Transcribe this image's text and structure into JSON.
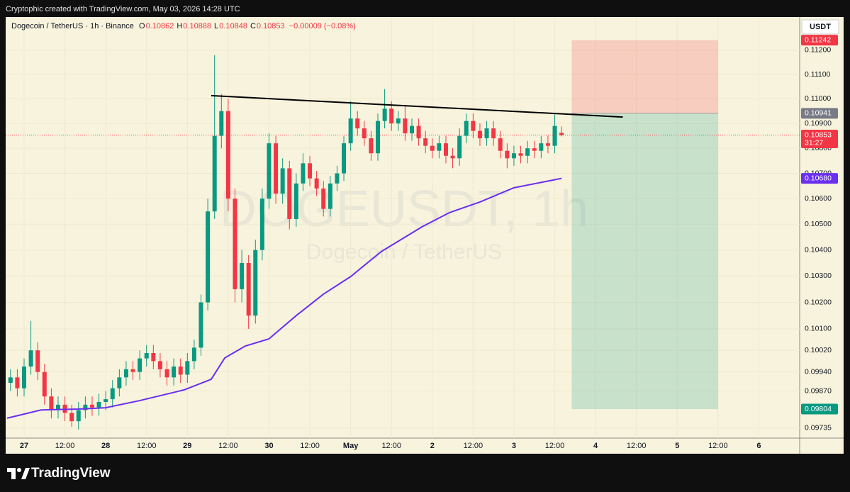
{
  "header": {
    "credit": "Cryptophic created with TradingView.com, May 03, 2026 14:28 UTC"
  },
  "footer": {
    "logo": "TradingView"
  },
  "chart_data": {
    "type": "candlestick",
    "title": "Dogecoin / TetherUS · 1h · Binance",
    "watermark": "DOGEUSDT, 1h",
    "watermark_subtitle": "Dogecoin / TetherUS",
    "currency": "USDT",
    "ohlc_legend": [
      {
        "label": "O",
        "value": 0.10862
      },
      {
        "label": "H",
        "value": 0.10888
      },
      {
        "label": "L",
        "value": 0.10848
      },
      {
        "label": "C",
        "value": 0.10853
      }
    ],
    "change": "−0.00009 (−0.08%)",
    "log_scale": true,
    "up_color": "#089981",
    "down_color": "#f23645",
    "xlim": [
      -5,
      228
    ],
    "xticks": [
      {
        "value": 0,
        "label": "27"
      },
      {
        "value": 12,
        "label": "12:00"
      },
      {
        "value": 24,
        "label": "28"
      },
      {
        "value": 36,
        "label": "12:00"
      },
      {
        "value": 48,
        "label": "29"
      },
      {
        "value": 60,
        "label": "12:00"
      },
      {
        "value": 72,
        "label": "30"
      },
      {
        "value": 84,
        "label": "12:00"
      },
      {
        "value": 96,
        "label": "May"
      },
      {
        "value": 108,
        "label": "12:00"
      },
      {
        "value": 120,
        "label": "2"
      },
      {
        "value": 132,
        "label": "12:00"
      },
      {
        "value": 144,
        "label": "3"
      },
      {
        "value": 156,
        "label": "12:00"
      },
      {
        "value": 168,
        "label": "4"
      },
      {
        "value": 180,
        "label": "12:00"
      },
      {
        "value": 192,
        "label": "5"
      },
      {
        "value": 204,
        "label": "12:00"
      },
      {
        "value": 216,
        "label": "6"
      }
    ],
    "ylim": [
      0.09699,
      0.11339
    ],
    "yticks": [
      {
        "value": 0.112,
        "label": "0.11200"
      },
      {
        "value": 0.111,
        "label": "0.11100"
      },
      {
        "value": 0.11,
        "label": "0.11000"
      },
      {
        "value": 0.109,
        "label": "0.10900"
      },
      {
        "value": 0.108,
        "label": "0.10800"
      },
      {
        "value": 0.107,
        "label": "0.10700"
      },
      {
        "value": 0.106,
        "label": "0.10600"
      },
      {
        "value": 0.105,
        "label": "0.10500"
      },
      {
        "value": 0.104,
        "label": "0.10400"
      },
      {
        "value": 0.103,
        "label": "0.10300"
      },
      {
        "value": 0.102,
        "label": "0.10200"
      },
      {
        "value": 0.101,
        "label": "0.10100"
      },
      {
        "value": 0.1002,
        "label": "0.10020"
      },
      {
        "value": 0.0994,
        "label": "0.09940"
      },
      {
        "value": 0.0987,
        "label": "0.09870"
      },
      {
        "value": 0.09735,
        "label": "0.09735"
      }
    ],
    "x": [
      -4,
      -2,
      0,
      2,
      4,
      6,
      8,
      10,
      12,
      14,
      16,
      18,
      20,
      22,
      24,
      26,
      28,
      30,
      32,
      34,
      36,
      38,
      40,
      42,
      44,
      46,
      48,
      50,
      52,
      54,
      56,
      58,
      60,
      62,
      64,
      66,
      68,
      70,
      72,
      74,
      76,
      78,
      80,
      82,
      84,
      86,
      88,
      90,
      92,
      94,
      96,
      98,
      100,
      102,
      104,
      106,
      108,
      110,
      112,
      114,
      116,
      118,
      120,
      122,
      124,
      126,
      128,
      130,
      132,
      134,
      136,
      138,
      140,
      142,
      144,
      146,
      148,
      150,
      152,
      154,
      156,
      158
    ],
    "open": [
      0.099,
      0.0992,
      0.0988,
      0.0996,
      0.1002,
      0.0994,
      0.0985,
      0.098,
      0.0982,
      0.0979,
      0.0976,
      0.098,
      0.0982,
      0.0981,
      0.0983,
      0.0984,
      0.0988,
      0.0992,
      0.0995,
      0.0994,
      0.0999,
      0.1001,
      0.0998,
      0.0995,
      0.0992,
      0.0996,
      0.0993,
      0.0998,
      0.1003,
      0.102,
      0.1055,
      0.1085,
      0.1095,
      0.106,
      0.1025,
      0.1035,
      0.1015,
      0.104,
      0.106,
      0.1082,
      0.1062,
      0.1072,
      0.1052,
      0.1066,
      0.1074,
      0.1068,
      0.1064,
      0.1056,
      0.1066,
      0.107,
      0.1082,
      0.1092,
      0.1088,
      0.1084,
      0.1078,
      0.1091,
      0.1096,
      0.109,
      0.1092,
      0.1086,
      0.1089,
      0.1084,
      0.1081,
      0.1079,
      0.1082,
      0.1077,
      0.1076,
      0.1085,
      0.1091,
      0.1087,
      0.1084,
      0.1088,
      0.1084,
      0.1079,
      0.1076,
      0.1078,
      0.1077,
      0.108,
      0.1079,
      0.1082,
      0.1081,
      0.10862
    ],
    "high": [
      0.0995,
      0.0995,
      0.0999,
      0.1013,
      0.1005,
      0.0997,
      0.0988,
      0.0985,
      0.0985,
      0.0982,
      0.0983,
      0.0985,
      0.0985,
      0.0986,
      0.0987,
      0.0991,
      0.0995,
      0.0998,
      0.0998,
      0.1002,
      0.1004,
      0.1004,
      0.1001,
      0.0998,
      0.0999,
      0.0999,
      0.1001,
      0.1006,
      0.1023,
      0.106,
      0.1118,
      0.1102,
      0.11,
      0.1064,
      0.104,
      0.1038,
      0.1044,
      0.1064,
      0.1086,
      0.1085,
      0.1076,
      0.1075,
      0.107,
      0.1078,
      0.1077,
      0.1071,
      0.1067,
      0.1069,
      0.1073,
      0.1085,
      0.1099,
      0.1095,
      0.1091,
      0.1087,
      0.1094,
      0.1104,
      0.1099,
      0.1095,
      0.1097,
      0.1092,
      0.1092,
      0.1087,
      0.1084,
      0.1085,
      0.1085,
      0.108,
      0.1088,
      0.1094,
      0.1094,
      0.109,
      0.1091,
      0.1091,
      0.1087,
      0.1082,
      0.1081,
      0.1081,
      0.1083,
      0.1083,
      0.1085,
      0.1085,
      0.1094,
      0.10888
    ],
    "low": [
      0.0987,
      0.0985,
      0.0985,
      0.0993,
      0.0991,
      0.0982,
      0.0977,
      0.0977,
      0.0976,
      0.0974,
      0.0973,
      0.0977,
      0.0978,
      0.0978,
      0.098,
      0.0981,
      0.0985,
      0.0989,
      0.0991,
      0.0991,
      0.0996,
      0.0995,
      0.0992,
      0.0989,
      0.0989,
      0.099,
      0.099,
      0.0995,
      0.1,
      0.1017,
      0.1052,
      0.108,
      0.1055,
      0.102,
      0.102,
      0.101,
      0.1012,
      0.1036,
      0.1056,
      0.1058,
      0.1058,
      0.1048,
      0.1049,
      0.1063,
      0.1065,
      0.1061,
      0.1053,
      0.1053,
      0.1063,
      0.1067,
      0.1079,
      0.1085,
      0.1081,
      0.1075,
      0.1075,
      0.1088,
      0.1087,
      0.1087,
      0.1083,
      0.1083,
      0.1081,
      0.1078,
      0.1076,
      0.1076,
      0.1074,
      0.1072,
      0.1073,
      0.1082,
      0.1084,
      0.1081,
      0.1081,
      0.1081,
      0.1076,
      0.1072,
      0.1073,
      0.1074,
      0.1074,
      0.1076,
      0.1076,
      0.1078,
      0.1078,
      0.10848
    ],
    "close": [
      0.0992,
      0.0988,
      0.0996,
      0.1002,
      0.0994,
      0.0985,
      0.098,
      0.0982,
      0.0979,
      0.0976,
      0.098,
      0.0982,
      0.0981,
      0.0983,
      0.0984,
      0.0988,
      0.0992,
      0.0995,
      0.0994,
      0.0999,
      0.1001,
      0.0998,
      0.0995,
      0.0992,
      0.0996,
      0.0993,
      0.0998,
      0.1003,
      0.102,
      0.1055,
      0.1085,
      0.1095,
      0.106,
      0.1025,
      0.1035,
      0.1015,
      0.104,
      0.106,
      0.1082,
      0.1062,
      0.1072,
      0.1052,
      0.1066,
      0.1074,
      0.1068,
      0.1064,
      0.1056,
      0.1066,
      0.107,
      0.1082,
      0.1092,
      0.1088,
      0.1084,
      0.1078,
      0.1091,
      0.1096,
      0.109,
      0.1092,
      0.1086,
      0.1089,
      0.1084,
      0.1081,
      0.1079,
      0.1082,
      0.1077,
      0.1076,
      0.1085,
      0.1091,
      0.1087,
      0.1084,
      0.1088,
      0.1084,
      0.1079,
      0.1076,
      0.1078,
      0.1077,
      0.108,
      0.1079,
      0.1082,
      0.1081,
      0.1089,
      0.10853
    ],
    "moving_average": {
      "color": "#6a2ff0",
      "x": [
        -5,
        5,
        16,
        24,
        34,
        47,
        55,
        59,
        65,
        72,
        80,
        88,
        96,
        105,
        117,
        125,
        134,
        144,
        158
      ],
      "values": [
        0.09771,
        0.09801,
        0.09804,
        0.09809,
        0.09835,
        0.09874,
        0.09913,
        0.09992,
        0.10036,
        0.10063,
        0.1015,
        0.10231,
        0.10298,
        0.10394,
        0.1049,
        0.10545,
        0.10587,
        0.10643,
        0.1068
      ]
    },
    "trendline": {
      "color": "#000000",
      "x": [
        55,
        176
      ],
      "values": [
        0.11013,
        0.10926
      ]
    },
    "position": {
      "x": [
        161,
        204
      ],
      "entry": 0.10941,
      "stop": 0.11242,
      "target": 0.09804
    },
    "price_labels": [
      {
        "value": 0.11242,
        "label": "0.11242",
        "color": "#f23645"
      },
      {
        "value": 0.10941,
        "label": "0.10941",
        "color": "#787b86"
      },
      {
        "value": 0.10853,
        "label": "0.10853",
        "color": "#f23645",
        "countdown": "31:27"
      },
      {
        "value": 0.1068,
        "label": "0.10680",
        "color": "#6a2ff0"
      },
      {
        "value": 0.09804,
        "label": "0.09804",
        "color": "#089981"
      }
    ]
  }
}
